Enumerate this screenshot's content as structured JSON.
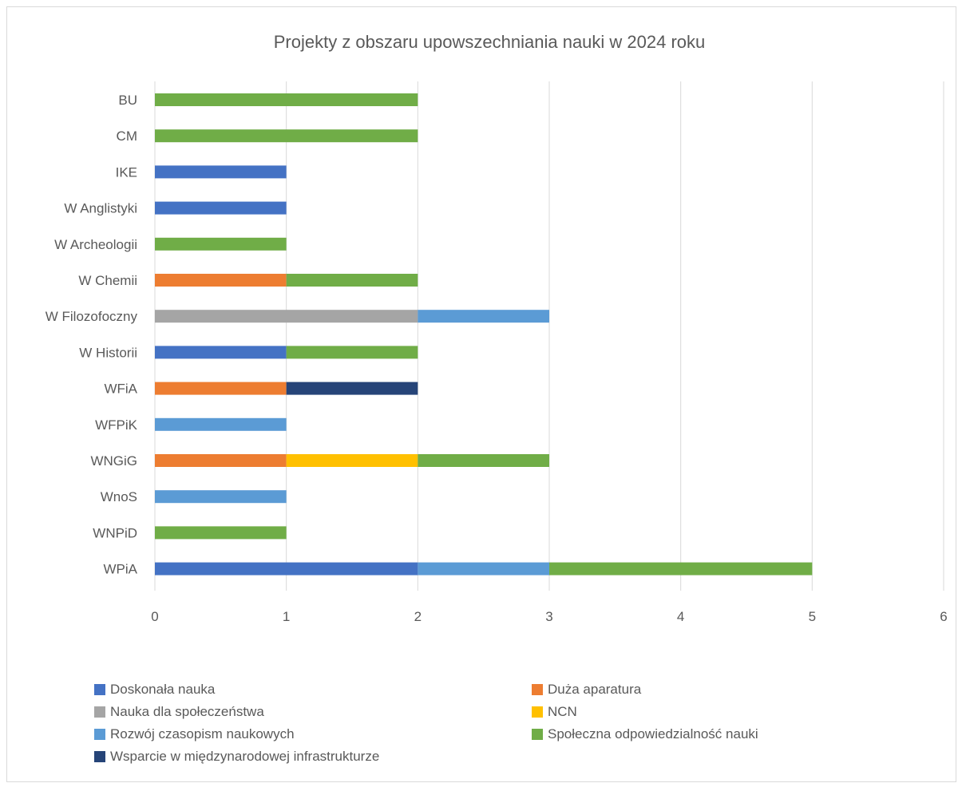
{
  "chart_data": {
    "type": "bar",
    "orientation": "horizontal",
    "stacked": true,
    "title": "Projekty z obszaru upowszechniania nauki w 2024 roku",
    "xlabel": "",
    "ylabel": "",
    "xlim": [
      0,
      6
    ],
    "x_ticks": [
      "0",
      "1",
      "2",
      "3",
      "4",
      "5",
      "6"
    ],
    "grid": "vertical",
    "legend_position": "bottom",
    "categories": [
      "BU",
      "CM",
      "IKE",
      "W Anglistyki",
      "W Archeologii",
      "W Chemii",
      "W Filozofoczny",
      "W Historii",
      "WFiA",
      "WFPiK",
      "WNGiG",
      "WnoS",
      "WNPiD",
      "WPiA"
    ],
    "series": [
      {
        "name": "Doskonała nauka",
        "color": "#4472c4",
        "values": [
          0,
          0,
          1,
          1,
          0,
          0,
          0,
          1,
          0,
          0,
          0,
          0,
          0,
          2
        ]
      },
      {
        "name": "Duża aparatura",
        "color": "#ed7d31",
        "values": [
          0,
          0,
          0,
          0,
          0,
          1,
          0,
          0,
          1,
          0,
          1,
          0,
          0,
          0
        ]
      },
      {
        "name": "Nauka dla społeczeństwa",
        "color": "#a5a5a5",
        "values": [
          0,
          0,
          0,
          0,
          0,
          0,
          2,
          0,
          0,
          0,
          0,
          0,
          0,
          0
        ]
      },
      {
        "name": "NCN",
        "color": "#ffc000",
        "values": [
          0,
          0,
          0,
          0,
          0,
          0,
          0,
          0,
          0,
          0,
          1,
          0,
          0,
          0
        ]
      },
      {
        "name": "Rozwój czasopism naukowych",
        "color": "#5b9bd5",
        "values": [
          0,
          0,
          0,
          0,
          0,
          0,
          1,
          0,
          0,
          1,
          0,
          1,
          0,
          1
        ]
      },
      {
        "name": "Społeczna odpowiedzialność nauki",
        "color": "#70ad47",
        "values": [
          2,
          2,
          0,
          0,
          1,
          1,
          0,
          1,
          0,
          0,
          1,
          0,
          1,
          2
        ]
      },
      {
        "name": "Wsparcie w międzynarodowej infrastrukturze",
        "color": "#264478",
        "values": [
          0,
          0,
          0,
          0,
          0,
          0,
          0,
          0,
          1,
          0,
          0,
          0,
          0,
          0
        ]
      }
    ]
  }
}
